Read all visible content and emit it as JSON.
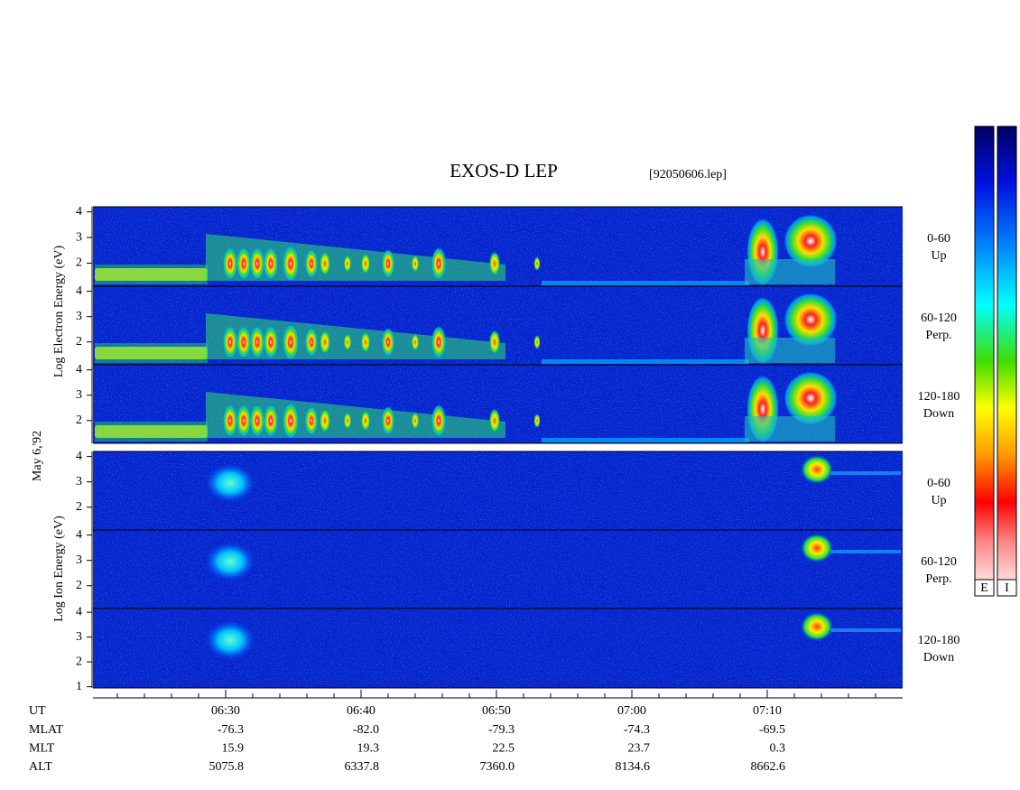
{
  "header": {
    "title": "EXOS-D LEP",
    "file": "[92050606.lep]"
  },
  "side_labels": {
    "electron": "Log Electron Energy (eV)",
    "date": "May 6,'92",
    "ion": "Log Ion Energy (eV)"
  },
  "colorbars": [
    "E",
    "I"
  ],
  "panels": [
    {
      "species": "electron",
      "pitch": "0-60",
      "direction": "Up",
      "ylim": [
        1.1,
        4.2
      ],
      "yticks": [
        2,
        3,
        4
      ]
    },
    {
      "species": "electron",
      "pitch": "60-120",
      "direction": "Perp.",
      "ylim": [
        1.1,
        4.2
      ],
      "yticks": [
        2,
        3,
        4
      ]
    },
    {
      "species": "electron",
      "pitch": "120-180",
      "direction": "Down",
      "ylim": [
        1.1,
        4.2
      ],
      "yticks": [
        2,
        3,
        4
      ]
    },
    {
      "species": "ion",
      "pitch": "0-60",
      "direction": "Up",
      "ylim": [
        1.1,
        4.2
      ],
      "yticks": [
        2,
        3,
        4
      ]
    },
    {
      "species": "ion",
      "pitch": "60-120",
      "direction": "Perp.",
      "ylim": [
        1.1,
        4.2
      ],
      "yticks": [
        2,
        3,
        4
      ]
    },
    {
      "species": "ion",
      "pitch": "120-180",
      "direction": "Down",
      "ylim": [
        0.95,
        4.15
      ],
      "yticks": [
        1,
        2,
        3,
        4
      ]
    }
  ],
  "time_axis": {
    "xlim": [
      20.2,
      80
    ],
    "xticks": [
      {
        "value": 30,
        "label": "06:30"
      },
      {
        "value": 40,
        "label": "06:40"
      },
      {
        "value": 50,
        "label": "06:50"
      },
      {
        "value": 60,
        "label": "07:00"
      },
      {
        "value": 70,
        "label": "07:10"
      }
    ],
    "xminorticks": [
      22,
      24,
      26,
      28,
      32,
      34,
      36,
      38,
      42,
      44,
      46,
      48,
      52,
      54,
      56,
      58,
      62,
      64,
      66,
      68,
      72,
      74,
      76,
      78
    ]
  },
  "ephemeris": {
    "ut_label": "UT",
    "rows": [
      {
        "label": "MLAT",
        "values": [
          "-76.3",
          "-82.0",
          "-79.3",
          "-74.3",
          "-69.5"
        ]
      },
      {
        "label": "MLT",
        "values": [
          "15.9",
          "19.3",
          "22.5",
          "23.7",
          "0.3"
        ]
      },
      {
        "label": "ALT",
        "values": [
          "5075.8",
          "6337.8",
          "7360.0",
          "8134.6",
          "8662.6"
        ]
      }
    ]
  }
}
